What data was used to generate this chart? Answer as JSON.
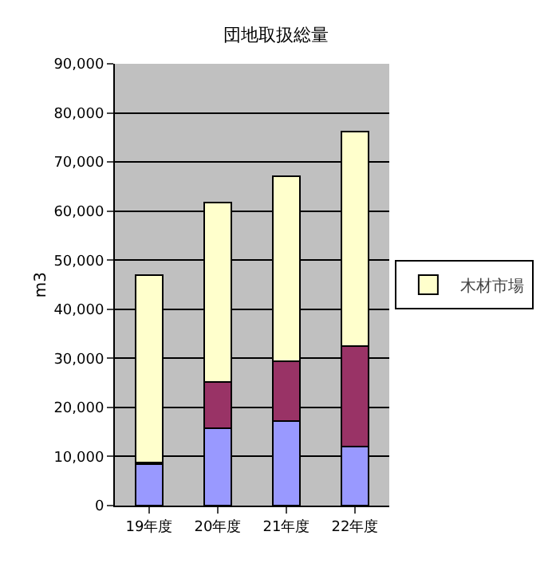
{
  "chart_data": {
    "type": "bar",
    "title": "団地取扱総量",
    "ylabel": "m3",
    "categories": [
      "19年度",
      "20年度",
      "21年度",
      "22年度"
    ],
    "stacked": true,
    "series": [
      {
        "color": "#9999ff",
        "values": [
          8400,
          15800,
          17200,
          12000
        ]
      },
      {
        "color": "#993366",
        "values": [
          300,
          9400,
          12200,
          20500
        ]
      },
      {
        "name": "木材市場",
        "color": "#ffffcc",
        "values": [
          38300,
          36600,
          37700,
          43700
        ]
      }
    ],
    "ylim": [
      0,
      90000
    ],
    "yticks": [
      {
        "value": 0,
        "label": "0"
      },
      {
        "value": 10000,
        "label": "10,000"
      },
      {
        "value": 20000,
        "label": "20,000"
      },
      {
        "value": 30000,
        "label": "30,000"
      },
      {
        "value": 40000,
        "label": "40,000"
      },
      {
        "value": 50000,
        "label": "50,000"
      },
      {
        "value": 60000,
        "label": "60,000"
      },
      {
        "value": 70000,
        "label": "70,000"
      },
      {
        "value": 80000,
        "label": "80,000"
      },
      {
        "value": 90000,
        "label": "90,000"
      }
    ],
    "grid": "y",
    "legend": "right"
  }
}
